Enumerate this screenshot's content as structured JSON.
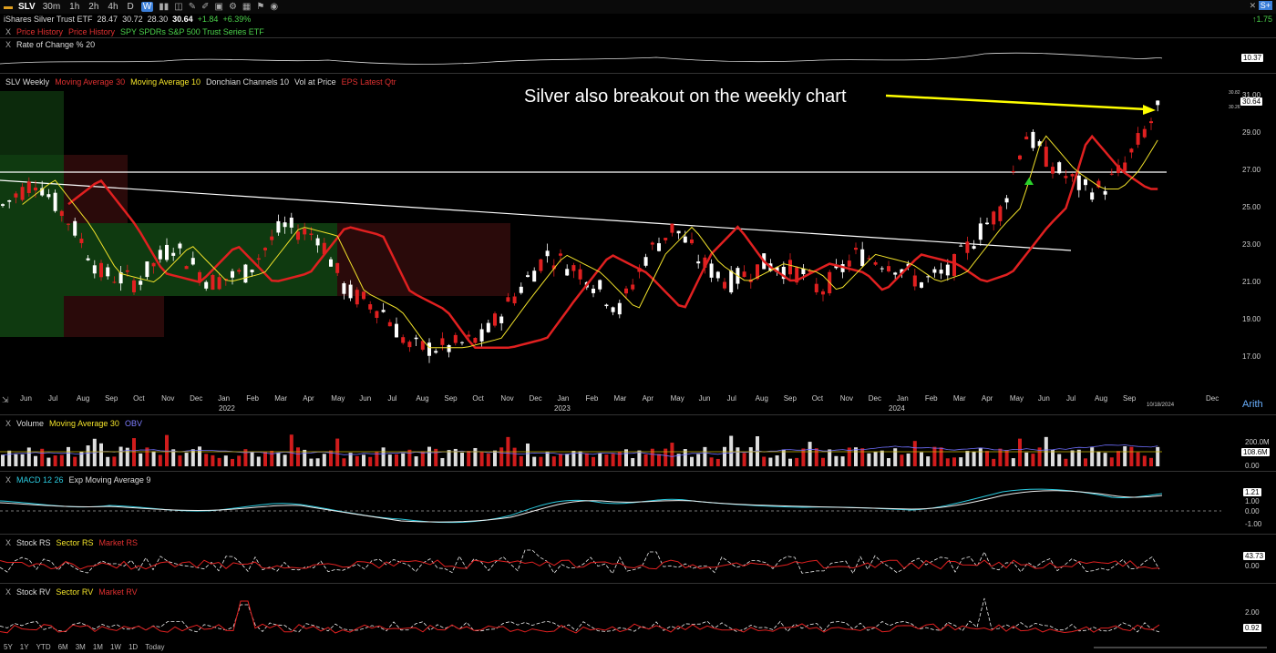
{
  "header": {
    "symbol": "SLV",
    "timeframes": [
      "30m",
      "1h",
      "2h",
      "4h",
      "D",
      "W"
    ],
    "active_timeframe": "W",
    "name": "iShares Silver Trust ETF",
    "open": "28.47",
    "high": "30.72",
    "low": "28.30",
    "close": "30.64",
    "change": "+1.84",
    "change_pct": "+6.39%",
    "right_change": "1.75"
  },
  "compare_bar": {
    "items": [
      "Price History",
      "Price History",
      "SPY SPDRs S&P 500 Trust Series ETF"
    ]
  },
  "roc_panel": {
    "label": "Rate of Change % 20",
    "value": "10.37"
  },
  "main": {
    "legend": [
      "SLV Weekly",
      "Moving Average 30",
      "Moving Average 10",
      "Donchian Channels 10",
      "Vol at Price",
      "EPS Latest Qtr"
    ],
    "annotation": "Silver also breakout on the weekly chart",
    "price_axis": [
      "31.00",
      "29.00",
      "27.00",
      "25.00",
      "23.00",
      "21.00",
      "19.00",
      "17.00"
    ],
    "last_price": "30.64",
    "price_tags": [
      "30.82",
      "30.26"
    ],
    "months": [
      "Jun",
      "Jul",
      "Aug",
      "Sep",
      "Oct",
      "Nov",
      "Dec",
      "Jan",
      "Feb",
      "Mar",
      "Apr",
      "May",
      "Jun",
      "Jul",
      "Aug",
      "Sep",
      "Oct",
      "Nov",
      "Dec",
      "Jan",
      "Feb",
      "Mar",
      "Apr",
      "May",
      "Jun",
      "Jul",
      "Aug",
      "Sep",
      "Oct",
      "Nov",
      "Dec",
      "Jan",
      "Feb",
      "Mar",
      "Apr",
      "May",
      "Jun",
      "Jul",
      "Aug",
      "Sep",
      "Dec"
    ],
    "years": [
      "2022",
      "2023",
      "2024"
    ],
    "date_tag": "10/18/2024",
    "scale": "Arith"
  },
  "volume_panel": {
    "legend": [
      "Volume",
      "Moving Average 30",
      "OBV"
    ],
    "axis": [
      "200.0M",
      "108.6M",
      "0.00"
    ]
  },
  "macd_panel": {
    "legend": [
      "MACD 12 26",
      "Exp Moving Average 9"
    ],
    "axis": [
      "1.21",
      "1.00",
      "0.00",
      "-1.00"
    ]
  },
  "rs_panel": {
    "legend": [
      "Stock RS",
      "Sector RS",
      "Market RS"
    ],
    "axis": [
      "43.73",
      "0.00"
    ]
  },
  "rv_panel": {
    "legend": [
      "Stock RV",
      "Sector RV",
      "Market RV"
    ],
    "axis": [
      "2.00",
      "0.92"
    ]
  },
  "ranges": [
    "5Y",
    "1Y",
    "YTD",
    "6M",
    "3M",
    "1M",
    "1W",
    "1D",
    "Today"
  ],
  "colors": {
    "up": "#ffffff",
    "down": "#e02020",
    "ma30": "#e02020",
    "ma10": "#f2e22a",
    "annotation_arrow": "#ffff00"
  }
}
